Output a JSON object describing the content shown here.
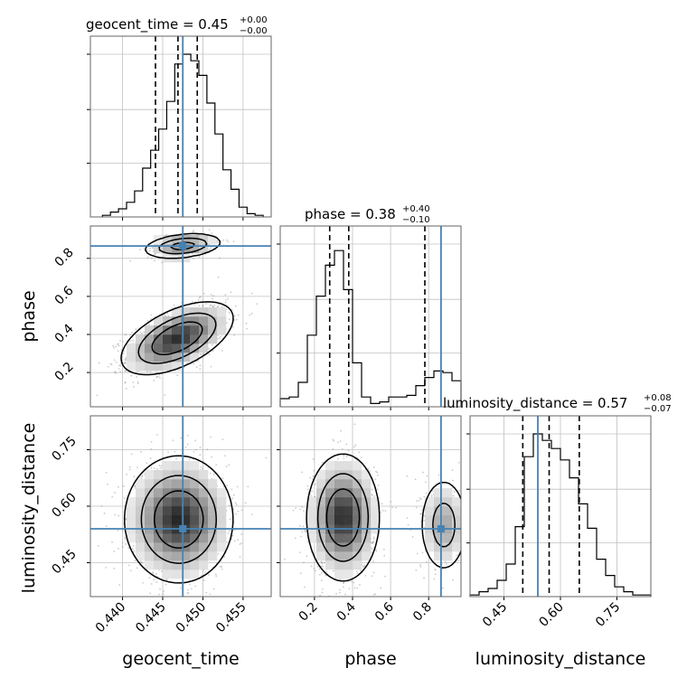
{
  "chart_data": {
    "type": "corner",
    "parameters": [
      "geocent_time",
      "phase",
      "luminosity_distance"
    ],
    "truth": {
      "geocent_time": 0.4475,
      "phase": 0.865,
      "luminosity_distance": 0.54
    },
    "colors": {
      "truth": "#4682b4",
      "hist": "#000000",
      "grid": "#c0c0c0"
    },
    "titles": [
      {
        "main": "geocent_time = 0.45",
        "sup": "+0.00",
        "sub": "−0.00"
      },
      {
        "main": "phase = 0.38",
        "sup": "+0.40",
        "sub": "−0.10"
      },
      {
        "main": "luminosity_distance = 0.57",
        "sup": "+0.08",
        "sub": "−0.07"
      }
    ],
    "axes": {
      "geocent_time": {
        "range": [
          0.436,
          0.4585
        ],
        "ticks": [
          0.44,
          0.445,
          0.45,
          0.455
        ],
        "tick_labels": [
          "0.440",
          "0.445",
          "0.450",
          "0.455"
        ]
      },
      "phase": {
        "range": [
          0.02,
          0.97
        ],
        "ticks": [
          0.2,
          0.4,
          0.6,
          0.8
        ],
        "tick_labels": [
          "0.2",
          "0.4",
          "0.6",
          "0.8"
        ]
      },
      "luminosity_distance": {
        "range": [
          0.36,
          0.84
        ],
        "ticks": [
          0.45,
          0.6,
          0.75
        ],
        "tick_labels": [
          "0.45",
          "0.60",
          "0.75"
        ]
      }
    },
    "quantiles": {
      "geocent_time": [
        0.4441,
        0.4469,
        0.4493
      ],
      "phase": [
        0.28,
        0.38,
        0.78
      ],
      "luminosity_distance": [
        0.5,
        0.57,
        0.65
      ]
    },
    "hist_geocent_time": {
      "bin_start": 0.4375,
      "bin_width": 0.001,
      "counts": [
        0.01,
        0.03,
        0.05,
        0.09,
        0.16,
        0.3,
        0.41,
        0.54,
        0.71,
        0.94,
        1.0,
        0.96,
        0.87,
        0.7,
        0.51,
        0.29,
        0.17,
        0.06,
        0.02,
        0.01
      ]
    },
    "hist_phase": {
      "bin_start": 0.02,
      "bin_width": 0.0475,
      "counts": [
        0.05,
        0.06,
        0.15,
        0.44,
        0.68,
        0.87,
        0.96,
        0.72,
        0.27,
        0.06,
        0.02,
        0.03,
        0.06,
        0.06,
        0.07,
        0.13,
        0.18,
        0.22,
        0.21,
        0.16
      ]
    },
    "hist_luminosity_distance": {
      "bin_start": 0.36,
      "bin_width": 0.024,
      "counts": [
        0.01,
        0.03,
        0.05,
        0.1,
        0.2,
        0.43,
        0.86,
        1.0,
        0.96,
        0.91,
        0.84,
        0.73,
        0.57,
        0.42,
        0.23,
        0.13,
        0.06,
        0.03,
        0.01,
        0.01
      ]
    },
    "modes_time_phase": [
      {
        "cx": 0.4468,
        "cy": 0.38,
        "sx": 0.0031,
        "sy": 0.085,
        "rho": 0.55,
        "n": 1400
      },
      {
        "cx": 0.4475,
        "cy": 0.865,
        "sx": 0.0022,
        "sy": 0.03,
        "rho": 0.3,
        "n": 300
      }
    ],
    "modes_time_distance": [
      {
        "cx": 0.447,
        "cy": 0.565,
        "sx": 0.003,
        "sy": 0.075,
        "rho": 0.0,
        "n": 1600
      }
    ],
    "modes_phase_distance": [
      {
        "cx": 0.35,
        "cy": 0.57,
        "sx": 0.085,
        "sy": 0.075,
        "rho": 0.0,
        "n": 1300
      },
      {
        "cx": 0.88,
        "cy": 0.55,
        "sx": 0.06,
        "sy": 0.06,
        "rho": 0.0,
        "n": 350
      }
    ],
    "xlabels": [
      "geocent_time",
      "phase",
      "luminosity_distance"
    ],
    "ylabels": [
      "phase",
      "luminosity_distance"
    ]
  }
}
